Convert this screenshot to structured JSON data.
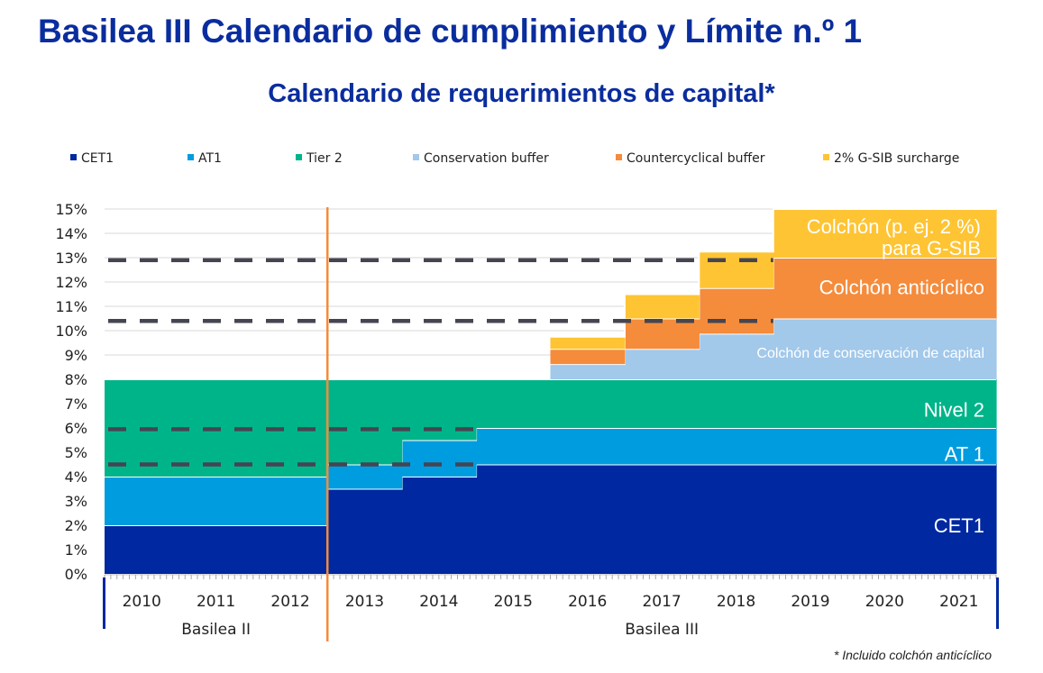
{
  "title": "Basilea III Calendario de cumplimiento y Límite n.º 1",
  "subtitle": "Calendario de requerimientos de capital*",
  "footnote": "* Incluido colchón anticíclico",
  "chart_data": {
    "type": "area",
    "stacked": true,
    "step": true,
    "categories": [
      "2010",
      "2011",
      "2012",
      "2013",
      "2014",
      "2015",
      "2016",
      "2017",
      "2018",
      "2019",
      "2020",
      "2021"
    ],
    "ylim": [
      0,
      15
    ],
    "yticks": [
      "0%",
      "1%",
      "2%",
      "3%",
      "4%",
      "5%",
      "6%",
      "7%",
      "8%",
      "9%",
      "10%",
      "11%",
      "12%",
      "13%",
      "14%",
      "15%"
    ],
    "grid": true,
    "legend_position": "top",
    "series": [
      {
        "name": "CET1",
        "color": "#0028a0",
        "label": "CET1",
        "values": [
          2,
          2,
          2,
          3.5,
          4,
          4.5,
          4.5,
          4.5,
          4.5,
          4.5,
          4.5,
          4.5
        ]
      },
      {
        "name": "AT1",
        "color": "#009ce0",
        "label": "AT 1",
        "values": [
          2,
          2,
          2,
          1,
          1.5,
          1.5,
          1.5,
          1.5,
          1.5,
          1.5,
          1.5,
          1.5
        ]
      },
      {
        "name": "Tier 2",
        "color": "#00b48a",
        "label": "Nivel 2",
        "values": [
          4,
          4,
          4,
          3.5,
          2.5,
          2,
          2,
          2,
          2,
          2,
          2,
          2
        ]
      },
      {
        "name": "Conservation buffer",
        "color": "#a2c8ea",
        "label": "Colchón de conservación de capital",
        "values": [
          0,
          0,
          0,
          0,
          0,
          0,
          0.625,
          1.25,
          1.875,
          2.5,
          2.5,
          2.5
        ]
      },
      {
        "name": "Countercyclical buffer",
        "color": "#f48c3c",
        "label": "Colchón anticíclico",
        "values": [
          0,
          0,
          0,
          0,
          0,
          0,
          0.625,
          1.25,
          1.875,
          2.5,
          2.5,
          2.5
        ]
      },
      {
        "name": "2% G-SIB surcharge",
        "color": "#fec433",
        "label": "Colchón (p. ej. 2 %) para G-SIB",
        "values": [
          0,
          0,
          0,
          0,
          0,
          0,
          0.5,
          1,
          1.5,
          2,
          2,
          2
        ]
      }
    ],
    "reference_lines": [
      {
        "y": 12.9,
        "from": "2010",
        "to": "2018"
      },
      {
        "y": 10.4,
        "from": "2010",
        "to": "2018"
      },
      {
        "y": 5.95,
        "from": "2010",
        "to": "2014"
      },
      {
        "y": 4.5,
        "from": "2010",
        "to": "2014"
      }
    ],
    "divider_after": "2012",
    "divider_color": "#f48c3c",
    "periods": [
      {
        "label": "Basilea II",
        "from": "2010",
        "to": "2012"
      },
      {
        "label": "Basilea III",
        "from": "2013",
        "to": "2021"
      }
    ]
  }
}
